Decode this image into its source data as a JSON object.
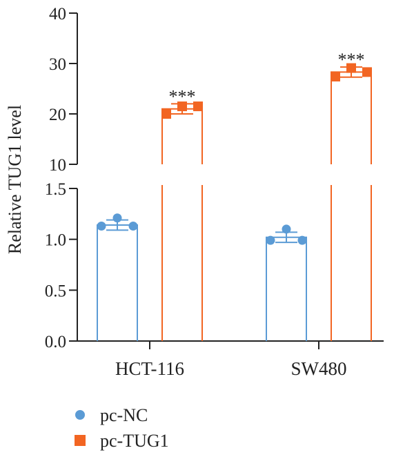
{
  "colors": {
    "pc_nc": "#5b9bd5",
    "pc_tug1": "#f26522",
    "axis": "#222222"
  },
  "chart_data": {
    "type": "bar",
    "ylabel": "Relative TUG1 level",
    "xlabel": "",
    "broken_axis": true,
    "lower_ylim": [
      0,
      1.5
    ],
    "upper_ylim": [
      10,
      40
    ],
    "lower_ticks": [
      "0.0",
      "0.5",
      "1.0",
      "1.5"
    ],
    "upper_ticks": [
      "10",
      "20",
      "30",
      "40"
    ],
    "categories": [
      "HCT-116",
      "SW480"
    ],
    "grid": false,
    "legend_position": "bottom-left",
    "series": [
      {
        "name": "pc-NC",
        "marker": "circle",
        "values": [
          1.14,
          1.02
        ],
        "errors": [
          0.05,
          0.05
        ],
        "points": [
          [
            1.13,
            1.21,
            1.13
          ],
          [
            0.99,
            1.1,
            0.99
          ]
        ]
      },
      {
        "name": "pc-TUG1",
        "marker": "square",
        "values": [
          21.0,
          28.3
        ],
        "errors": [
          1.0,
          1.0
        ],
        "points": [
          [
            20.0,
            21.5,
            21.5
          ],
          [
            27.4,
            29.1,
            28.3
          ]
        ]
      }
    ],
    "annotations": [
      {
        "category": "HCT-116",
        "text": "***"
      },
      {
        "category": "SW480",
        "text": "***"
      }
    ]
  }
}
